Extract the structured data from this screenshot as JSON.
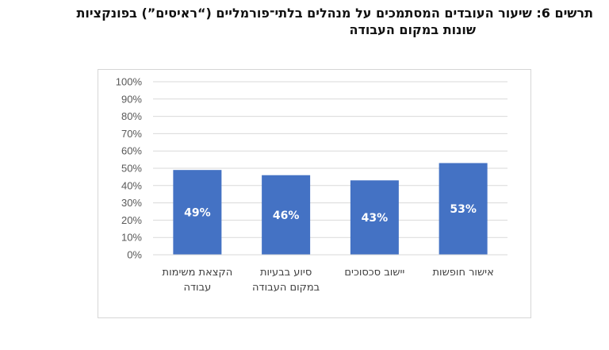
{
  "figure": {
    "title_line1": "תרשים 6: שיעור העובדים המסתמכים על מנהלים בלתי־פורמליים (“ראיסים”) בפונקציות",
    "title_line2": "שונות במקום העבודה"
  },
  "chart_data": {
    "type": "bar",
    "categories": [
      [
        "הקצאת משימות",
        "עבודה"
      ],
      [
        "סיוע בבעיות",
        "במקום העבודה"
      ],
      [
        "יישוב סכסוכים"
      ],
      [
        "אישור חופשות"
      ]
    ],
    "values": [
      49,
      46,
      43,
      53
    ],
    "data_labels": [
      "49%",
      "46%",
      "43%",
      "53%"
    ],
    "y_ticks": [
      "0%",
      "10%",
      "20%",
      "30%",
      "40%",
      "50%",
      "60%",
      "70%",
      "80%",
      "90%",
      "100%"
    ],
    "ylim": [
      0,
      100
    ],
    "grid": true,
    "bar_color": "#4472c4",
    "grid_color": "#d9d9d9"
  }
}
